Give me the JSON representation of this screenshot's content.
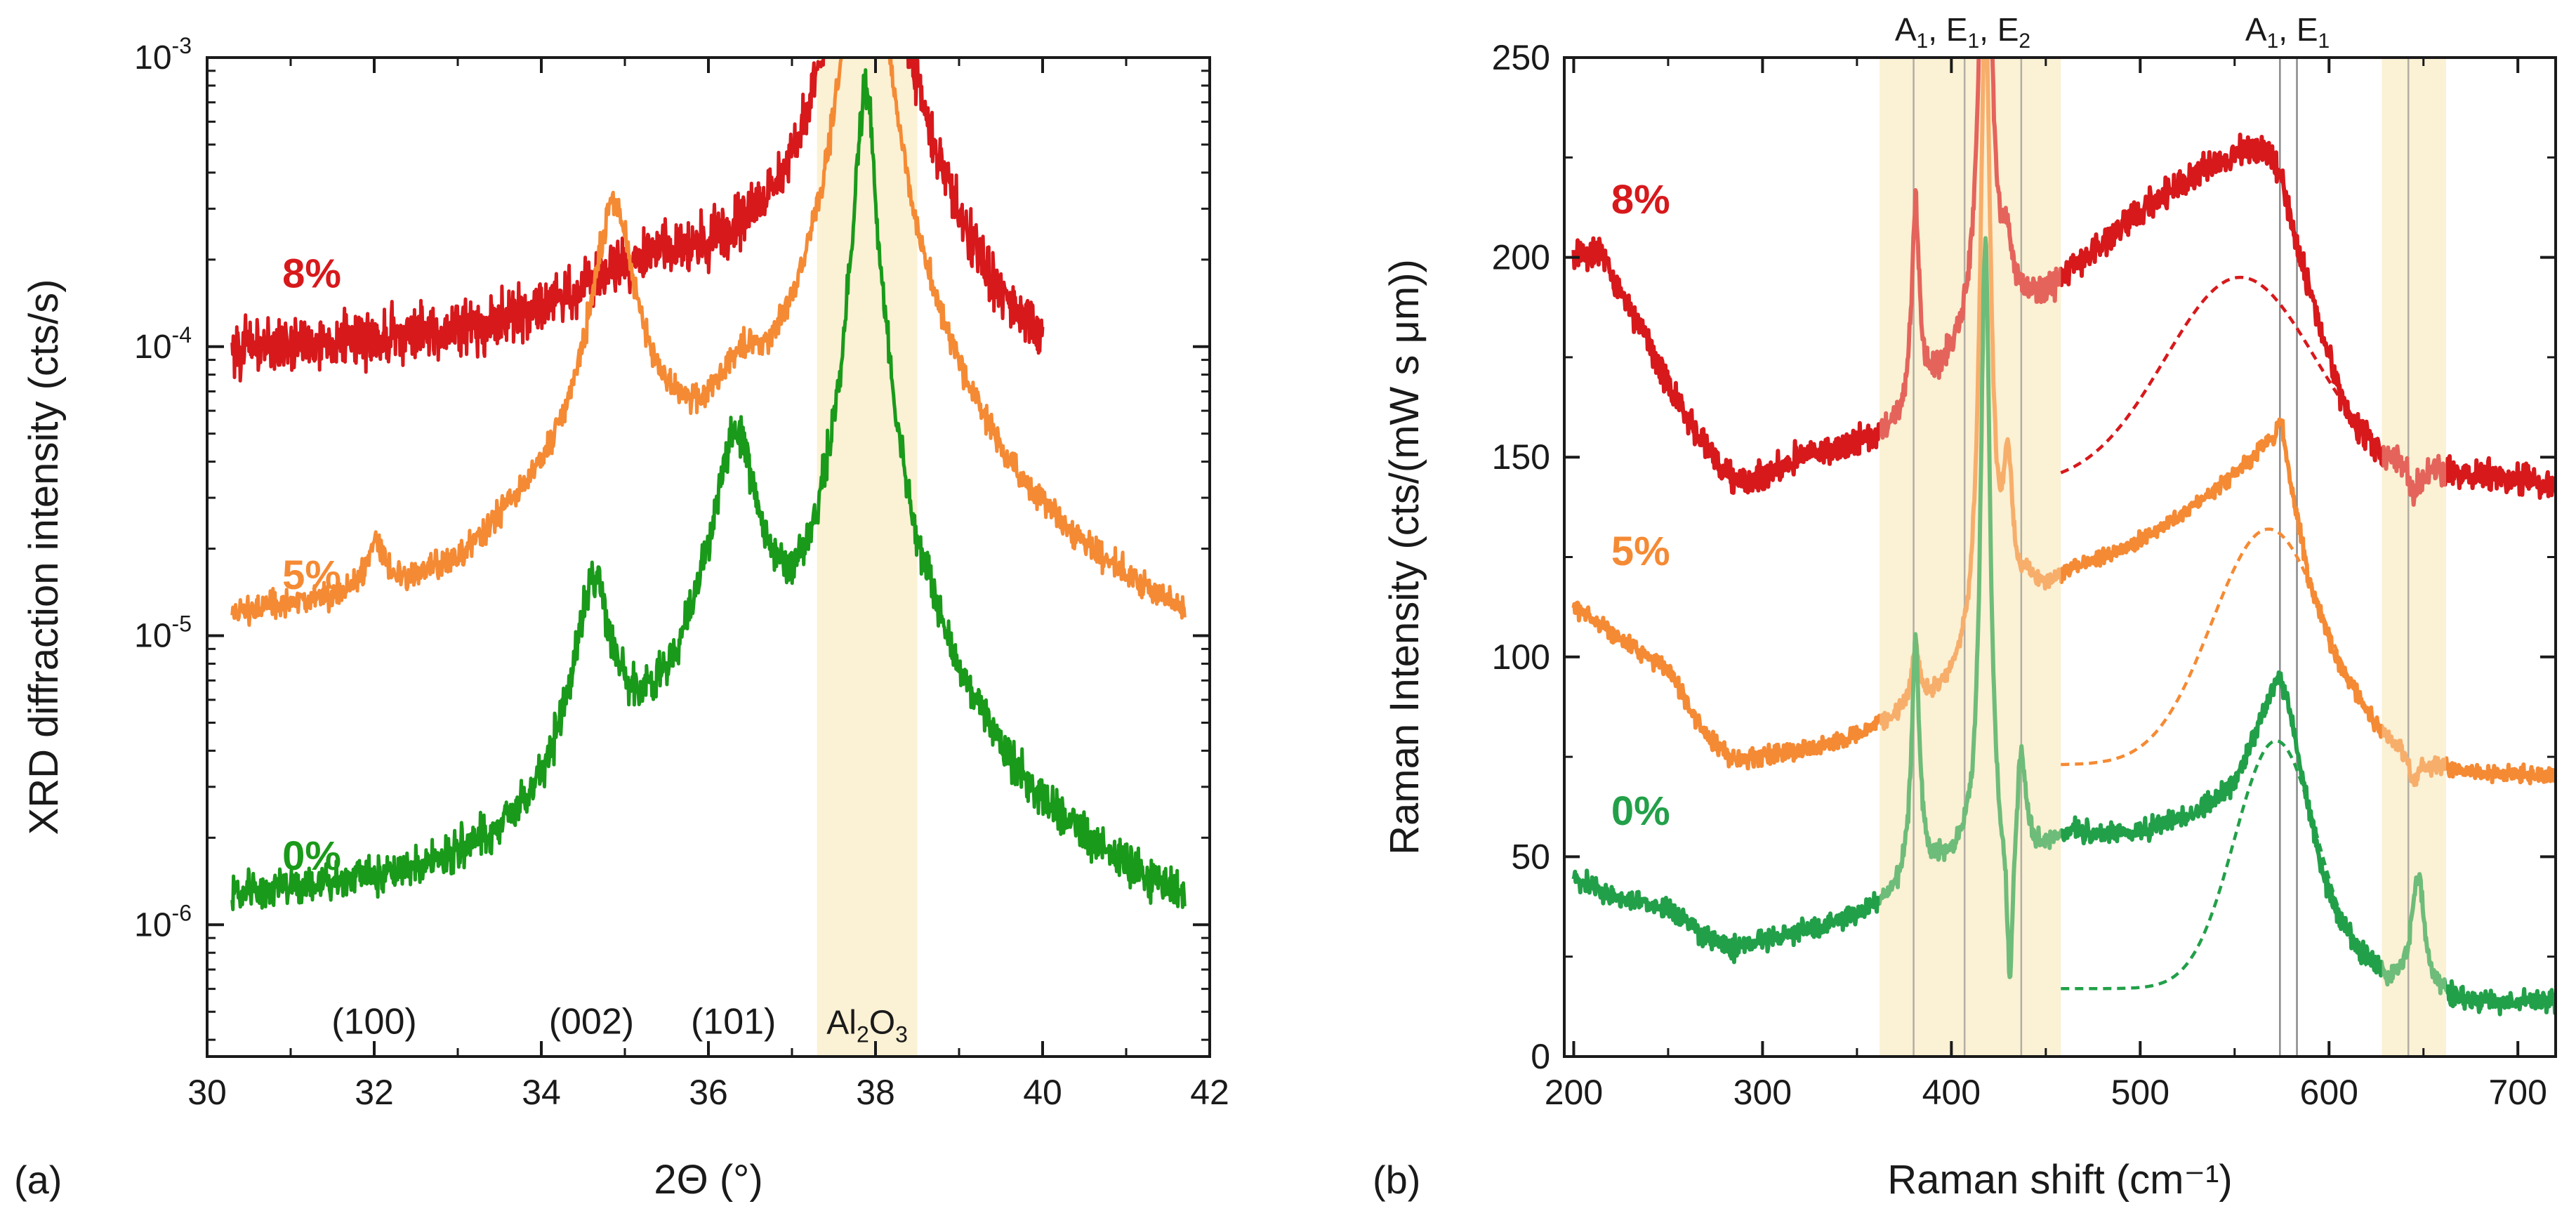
{
  "panels": {
    "a": {
      "label": "(a)"
    },
    "b": {
      "label": "(b)"
    }
  },
  "chart_data": [
    {
      "type": "line",
      "panel": "(a)",
      "xlabel": "2Θ (°)",
      "ylabel": "XRD diffraction intensity (cts/s)",
      "xlim": [
        30,
        42
      ],
      "ylim": [
        3.5e-07,
        0.001
      ],
      "yscale": "log",
      "x_ticks": [
        30,
        32,
        34,
        36,
        38,
        40,
        42
      ],
      "x_tick_labels": [
        "30",
        "32",
        "34",
        "36",
        "38",
        "40",
        "42"
      ],
      "y_ticks": [
        {
          "value": 1e-06,
          "base": "10",
          "exp": "-6"
        },
        {
          "value": 1e-05,
          "base": "10",
          "exp": "-5"
        },
        {
          "value": 0.0001,
          "base": "10",
          "exp": "-4"
        },
        {
          "value": 0.001,
          "base": "10",
          "exp": "-3"
        }
      ],
      "shaded_regions": [
        {
          "x_range": [
            37.3,
            38.5
          ],
          "color": "#fbf1d4"
        }
      ],
      "peak_labels": [
        {
          "text": "(100)",
          "x": 32.0,
          "y": 4.2e-07
        },
        {
          "text": "(002)",
          "x": 34.6,
          "y": 4.2e-07
        },
        {
          "text": "(101)",
          "x": 36.3,
          "y": 4.2e-07
        }
      ],
      "substrate_label": {
        "main": "Al",
        "sub1": "2",
        "mid": "O",
        "sub2": "3",
        "x": 37.9,
        "y": 4.2e-07
      },
      "series": [
        {
          "name": "8%",
          "color": "#d7191c",
          "label_x": 30.9,
          "label_y": 0.00016,
          "x_range": [
            30.3,
            40.0
          ],
          "baseline": [
            [
              30.3,
              9.5e-05
            ],
            [
              32.0,
              0.0001
            ],
            [
              33.5,
              0.00011
            ],
            [
              34.5,
              0.00014
            ],
            [
              35.3,
              0.00018
            ],
            [
              36.2,
              0.000165
            ],
            [
              37.0,
              0.00017
            ],
            [
              37.5,
              0.00021
            ],
            [
              38.5,
              0.00019
            ],
            [
              39.0,
              0.0001
            ],
            [
              39.5,
              6.5e-05
            ],
            [
              40.0,
              5.5e-05
            ]
          ],
          "peaks": [
            {
              "center": 37.88,
              "height": 0.02,
              "width": 0.11
            }
          ],
          "noise": 0.13
        },
        {
          "name": "5%",
          "color": "#f58a34",
          "label_x": 30.9,
          "label_y": 1.45e-05,
          "x_range": [
            30.3,
            41.7
          ],
          "baseline": [
            [
              30.3,
              9.5e-06
            ],
            [
              31.5,
              1e-05
            ],
            [
              33.0,
              1.05e-05
            ],
            [
              34.0,
              1.7e-05
            ],
            [
              35.5,
              2.6e-05
            ],
            [
              36.8,
              2.3e-05
            ],
            [
              37.5,
              2.2e-05
            ],
            [
              38.5,
              1.8e-05
            ],
            [
              39.5,
              7.5e-06
            ],
            [
              41.7,
              5.3e-06
            ]
          ],
          "peaks": [
            {
              "center": 32.02,
              "height": 7.5e-06,
              "width": 0.1
            },
            {
              "center": 34.87,
              "height": 0.000285,
              "width": 0.22
            },
            {
              "center": 36.38,
              "height": 2.9e-05,
              "width": 0.25
            },
            {
              "center": 37.88,
              "height": 0.008,
              "width": 0.11
            }
          ],
          "noise": 0.07
        },
        {
          "name": "0%",
          "color": "#1a9a1a",
          "label_x": 30.9,
          "label_y": 1.55e-06,
          "x_range": [
            30.3,
            41.7
          ],
          "baseline": [
            [
              30.3,
              1.05e-06
            ],
            [
              32.5,
              1e-06
            ],
            [
              33.8,
              1.05e-06
            ],
            [
              34.1,
              1.2e-06
            ],
            [
              35.2,
              1.9e-06
            ],
            [
              37.0,
              1.9e-06
            ],
            [
              37.8,
              3e-06
            ],
            [
              38.5,
              1.5e-06
            ],
            [
              39.5,
              8.5e-07
            ],
            [
              41.7,
              5.8e-07
            ]
          ],
          "peaks": [
            {
              "center": 34.63,
              "height": 1.3e-05,
              "width": 0.2
            },
            {
              "center": 36.33,
              "height": 4.4e-05,
              "width": 0.26
            },
            {
              "center": 37.88,
              "height": 0.0008,
              "width": 0.1
            }
          ],
          "noise": 0.1
        }
      ]
    },
    {
      "type": "line",
      "panel": "(b)",
      "xlabel": "Raman shift (cm⁻¹)",
      "ylabel": "Raman Intensity (cts/(mW s μm))",
      "xlim": [
        195,
        720
      ],
      "ylim": [
        0,
        250
      ],
      "x_ticks": [
        200,
        300,
        400,
        500,
        600,
        700
      ],
      "y_ticks": [
        0,
        50,
        100,
        150,
        200,
        250
      ],
      "shaded_regions": [
        {
          "x_range": [
            362,
            458
          ],
          "color": "#fbf1d4"
        },
        {
          "x_range": [
            628,
            662
          ],
          "color": "#fbf1d4"
        }
      ],
      "vertical_lines": [
        380,
        407,
        437,
        574,
        583,
        642
      ],
      "top_annotations": [
        {
          "parts": [
            "A",
            "1",
            ", E",
            "1",
            ", E",
            "2"
          ],
          "x": 406
        },
        {
          "parts": [
            "A",
            "1",
            ", E",
            "1"
          ],
          "x": 578
        }
      ],
      "series": [
        {
          "name": "8%",
          "color": "#d7191c",
          "label_x": 205,
          "label_y": 211,
          "x_range": [
            200,
            720
          ],
          "baseline": [
            [
              200,
              200
            ],
            [
              215,
              201
            ],
            [
              225,
              192
            ],
            [
              245,
              173
            ],
            [
              265,
              155
            ],
            [
              285,
              144
            ],
            [
              300,
              145
            ],
            [
              320,
              150
            ],
            [
              360,
              154
            ],
            [
              378,
              160
            ],
            [
              400,
              172
            ],
            [
              415,
              182
            ],
            [
              425,
              185
            ],
            [
              450,
              190
            ],
            [
              470,
              199
            ],
            [
              500,
              211
            ],
            [
              530,
              221
            ],
            [
              555,
              227
            ],
            [
              568,
              226
            ],
            [
              575,
              220
            ],
            [
              582,
              205
            ],
            [
              595,
              183
            ],
            [
              610,
              160
            ],
            [
              625,
              152
            ],
            [
              650,
              147
            ],
            [
              690,
              145
            ],
            [
              720,
              143
            ]
          ],
          "peaks": [
            {
              "center": 381,
              "height": 50,
              "width": 2.5
            },
            {
              "center": 418,
              "height": 140,
              "width": 3.5
            },
            {
              "center": 430,
              "height": 12,
              "width": 3
            }
          ],
          "dips": [
            {
              "center": 645,
              "depth": 8,
              "width": 2.5
            }
          ],
          "noise": 2.2
        },
        {
          "name": "5%",
          "color": "#f58a34",
          "label_x": 205,
          "label_y": 123,
          "x_range": [
            200,
            720
          ],
          "baseline": [
            [
              200,
              113
            ],
            [
              220,
              106
            ],
            [
              250,
              97
            ],
            [
              270,
              80
            ],
            [
              285,
              74
            ],
            [
              300,
              75
            ],
            [
              330,
              77
            ],
            [
              360,
              82
            ],
            [
              380,
              86
            ],
            [
              405,
              93
            ],
            [
              420,
              100
            ],
            [
              440,
              112
            ],
            [
              460,
              120
            ],
            [
              500,
              129
            ],
            [
              530,
              138
            ],
            [
              555,
              148
            ],
            [
              568,
              154
            ],
            [
              576,
              152
            ],
            [
              590,
              118
            ],
            [
              605,
              98
            ],
            [
              625,
              83
            ],
            [
              645,
              74
            ],
            [
              680,
              71
            ],
            [
              720,
              70
            ]
          ],
          "peaks": [
            {
              "center": 381,
              "height": 14,
              "width": 2.5
            },
            {
              "center": 418,
              "height": 160,
              "width": 3.5
            },
            {
              "center": 430,
              "height": 35,
              "width": 3
            },
            {
              "center": 440,
              "height": 5,
              "width": 3
            },
            {
              "center": 574,
              "height": 7,
              "width": 2
            }
          ],
          "dips": [
            {
              "center": 645,
              "depth": 6,
              "width": 2.5
            }
          ],
          "noise": 1.3
        },
        {
          "name": "0%",
          "color": "#22a049",
          "label_x": 205,
          "label_y": 58,
          "x_range": [
            200,
            720
          ],
          "baseline": [
            [
              200,
              45
            ],
            [
              220,
              40
            ],
            [
              250,
              37
            ],
            [
              270,
              30
            ],
            [
              285,
              27
            ],
            [
              300,
              29
            ],
            [
              330,
              32
            ],
            [
              360,
              37
            ],
            [
              375,
              42
            ],
            [
              395,
              47
            ],
            [
              410,
              48
            ],
            [
              425,
              42
            ],
            [
              440,
              48
            ],
            [
              460,
              55
            ],
            [
              500,
              56
            ],
            [
              530,
              61
            ],
            [
              550,
              68
            ],
            [
              560,
              80
            ],
            [
              570,
              91
            ],
            [
              578,
              88
            ],
            [
              590,
              60
            ],
            [
              600,
              40
            ],
            [
              615,
              27
            ],
            [
              630,
              19
            ],
            [
              650,
              16
            ],
            [
              680,
              13
            ],
            [
              720,
              14
            ]
          ],
          "peaks": [
            {
              "center": 381,
              "height": 60,
              "width": 2.5
            },
            {
              "center": 418,
              "height": 160,
              "width": 3
            },
            {
              "center": 437,
              "height": 28,
              "width": 3
            },
            {
              "center": 647,
              "height": 29,
              "width": 4
            },
            {
              "center": 574,
              "height": 5,
              "width": 2
            }
          ],
          "dips": [
            {
              "center": 431,
              "depth": 38,
              "width": 1.8
            }
          ],
          "noise": 1.6
        }
      ],
      "dashed_fits": [
        {
          "color": "#d7191c",
          "x_range": [
            458,
            620
          ],
          "offset": 143,
          "amplitude": 52,
          "center": 553,
          "sigma": 40
        },
        {
          "color": "#f58a34",
          "x_range": [
            458,
            620
          ],
          "offset": 73,
          "amplitude": 59,
          "center": 568,
          "sigma": 30
        },
        {
          "color": "#22a049",
          "x_range": [
            458,
            620
          ],
          "offset": 17,
          "amplitude": 62,
          "center": 572,
          "sigma": 22
        }
      ]
    }
  ]
}
